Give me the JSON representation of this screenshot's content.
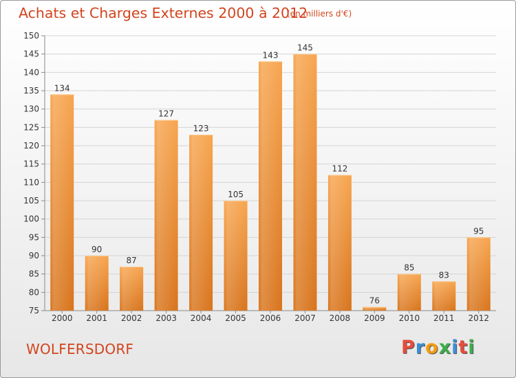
{
  "chart_data": {
    "type": "bar",
    "title": "Achats et Charges Externes 2000 à 2012",
    "subtitle": "(en milliers d'€)",
    "categories": [
      "2000",
      "2001",
      "2002",
      "2003",
      "2004",
      "2005",
      "2006",
      "2007",
      "2008",
      "2009",
      "2010",
      "2011",
      "2012"
    ],
    "values": [
      134,
      90,
      87,
      127,
      123,
      105,
      143,
      145,
      112,
      76,
      85,
      83,
      95
    ],
    "ylim": [
      75,
      150
    ],
    "yticks": [
      75,
      80,
      85,
      90,
      95,
      100,
      105,
      110,
      115,
      120,
      125,
      130,
      135,
      140,
      145,
      150
    ],
    "grid": true,
    "bar_color": "#f39a3e"
  },
  "footer": {
    "commune": "WOLFERSDORF",
    "brand": "Proxiti"
  },
  "brand_colors": [
    "#e74c3c",
    "#3a8fd6",
    "#f39c12",
    "#3cae4a",
    "#3a8fd6",
    "#e74c3c",
    "#3cae4a"
  ]
}
